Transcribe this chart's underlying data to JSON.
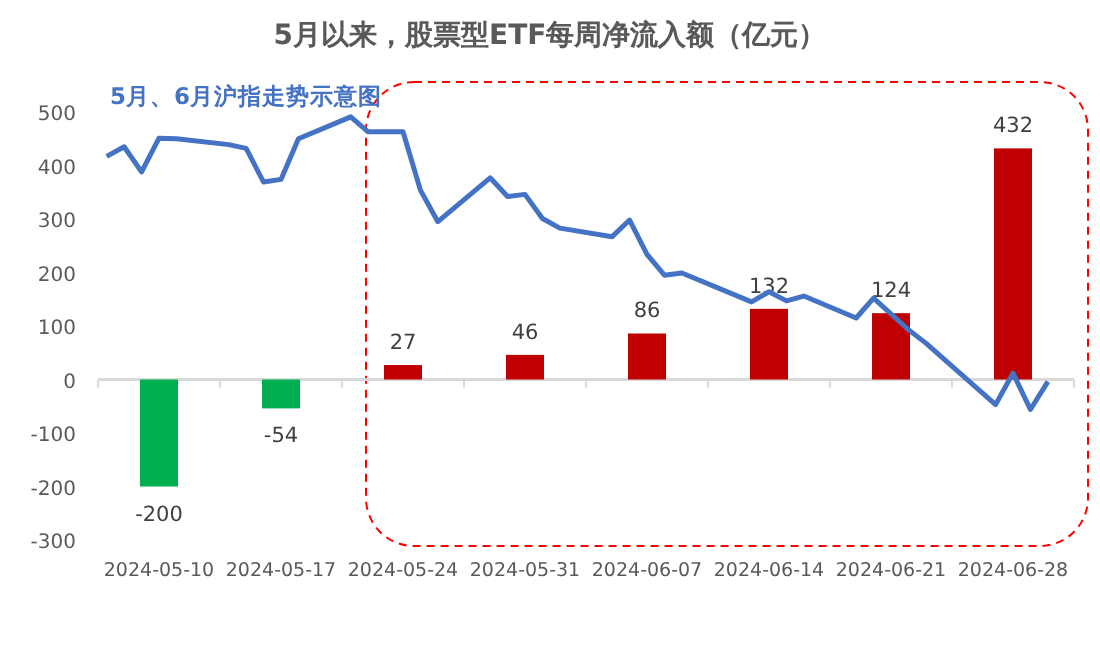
{
  "chart_data": {
    "type": "bar",
    "title": "5月以来，股票型ETF每周净流入额（亿元）",
    "x": [
      "2024-05-10",
      "2024-05-17",
      "2024-05-24",
      "2024-05-31",
      "2024-06-07",
      "2024-06-14",
      "2024-06-21",
      "2024-06-28"
    ],
    "xlim": [
      "2024-05-06T12:00",
      "2024-07-01T12:00"
    ],
    "xticks": [
      {
        "value": "2024-05-06T12:00",
        "label": null
      },
      "2024-05-10",
      {
        "value": "2024-05-13T12:00",
        "label": null
      },
      "2024-05-17",
      {
        "value": "2024-05-20T12:00",
        "label": null
      },
      "2024-05-24",
      {
        "value": "2024-05-27T12:00",
        "label": null
      },
      "2024-05-31",
      {
        "value": "2024-06-03T12:00",
        "label": null
      },
      "2024-06-07",
      {
        "value": "2024-06-10T12:00",
        "label": null
      },
      "2024-06-14",
      {
        "value": "2024-06-17T12:00",
        "label": null
      },
      "2024-06-21",
      {
        "value": "2024-06-24T12:00",
        "label": null
      },
      "2024-06-28",
      {
        "value": "2024-07-01T12:00",
        "label": null
      }
    ],
    "ylim": [
      -300,
      500
    ],
    "yticks": [
      -300,
      -200,
      -100,
      0,
      100,
      200,
      300,
      400,
      500
    ],
    "series": [
      {
        "colors": [
          "#00b050",
          "#00b050",
          "#c00000",
          "#c00000",
          "#c00000",
          "#c00000",
          "#c00000",
          "#c00000"
        ],
        "values": [
          -200,
          -54,
          27,
          46,
          86,
          132,
          124,
          432
        ],
        "value_labels": [
          "-200",
          "-54",
          "27",
          "46",
          "86",
          "132",
          "124",
          "432"
        ]
      },
      {
        "type": "line",
        "name": "5月、6月沪指走势示意图",
        "color": "#4472c4",
        "x": [
          "2024-05-07",
          "2024-05-08",
          "2024-05-09",
          "2024-05-10",
          "2024-05-11",
          "2024-05-14",
          "2024-05-15",
          "2024-05-16",
          "2024-05-17",
          "2024-05-18",
          "2024-05-21",
          "2024-05-22",
          "2024-05-24",
          "2024-05-25",
          "2024-05-26",
          "2024-05-29",
          "2024-05-30",
          "2024-05-31",
          "2024-06-01",
          "2024-06-02",
          "2024-06-05",
          "2024-06-06",
          "2024-06-07",
          "2024-06-08",
          "2024-06-09",
          "2024-06-13",
          "2024-06-14",
          "2024-06-15",
          "2024-06-16",
          "2024-06-19",
          "2024-06-20",
          "2024-06-22",
          "2024-06-23",
          "2024-06-27",
          "2024-06-28",
          "2024-06-29",
          "2024-06-30"
        ],
        "values": [
          417,
          435,
          388,
          451,
          450,
          439,
          432,
          369,
          374,
          450,
          491,
          463,
          463,
          354,
          295,
          377,
          342,
          346,
          301,
          283,
          267,
          298,
          234,
          195,
          199,
          145,
          164,
          147,
          156,
          115,
          152,
          93,
          68,
          -47,
          12,
          -56,
          -4
        ]
      }
    ]
  }
}
